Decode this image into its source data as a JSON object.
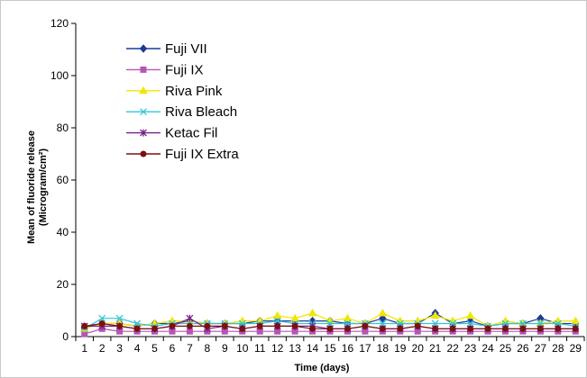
{
  "chart_data": {
    "type": "line",
    "title": "",
    "xlabel": "Time (days)",
    "ylabel_lines": [
      "Mean of fluoride release",
      "(Microgram/cm²)"
    ],
    "x": [
      1,
      2,
      3,
      4,
      5,
      6,
      7,
      8,
      9,
      10,
      11,
      12,
      13,
      14,
      15,
      16,
      17,
      18,
      19,
      20,
      21,
      22,
      23,
      24,
      25,
      26,
      27,
      28,
      29
    ],
    "ylim": [
      0,
      120
    ],
    "yticks": [
      0,
      20,
      40,
      60,
      80,
      100,
      120
    ],
    "grid": false,
    "legend_position": "top-left",
    "series": [
      {
        "name": "Fuji VII",
        "color": "#1f3a93",
        "marker": "diamond",
        "values": [
          3.5,
          5,
          5,
          4,
          5,
          5,
          6,
          5,
          5,
          5,
          6,
          6,
          6,
          6,
          6,
          5,
          5,
          7,
          5,
          5,
          9,
          5,
          6,
          4,
          5,
          5,
          7,
          5,
          5
        ]
      },
      {
        "name": "Fuji IX",
        "color": "#b455b6",
        "marker": "square",
        "values": [
          1,
          3,
          2,
          2,
          2,
          2,
          2,
          2,
          2,
          2,
          2,
          2,
          2,
          2,
          2,
          2,
          2,
          2,
          2,
          2,
          2,
          2,
          2,
          2,
          2,
          2,
          2,
          2,
          2
        ]
      },
      {
        "name": "Riva Pink",
        "color": "#f2e600",
        "marker": "triangle",
        "values": [
          3,
          5,
          5,
          4,
          5,
          6,
          6,
          5,
          5,
          6,
          6,
          8,
          7,
          9,
          6,
          7,
          5,
          9,
          6,
          6,
          8,
          6,
          8,
          4,
          6,
          5,
          5,
          6,
          6
        ]
      },
      {
        "name": "Riva Bleach",
        "color": "#33c6d8",
        "marker": "x",
        "values": [
          3,
          7,
          7,
          5,
          4,
          5,
          5,
          5,
          5,
          5,
          5,
          6,
          5,
          5,
          5,
          5,
          5,
          5,
          5,
          5,
          5,
          5,
          5,
          4,
          5,
          5,
          5,
          5,
          4
        ]
      },
      {
        "name": "Ketac Fil",
        "color": "#7a1f8a",
        "marker": "asterisk",
        "values": [
          4,
          4,
          4,
          3,
          3,
          4,
          7,
          3,
          4,
          3,
          4,
          4,
          4,
          4,
          3,
          3,
          4,
          3,
          3,
          4,
          3,
          3,
          3,
          3,
          3,
          3,
          3,
          3,
          3
        ]
      },
      {
        "name": "Fuji IX Extra",
        "color": "#7a1010",
        "marker": "circle",
        "values": [
          4,
          5,
          4,
          3,
          3,
          4,
          4,
          4,
          4,
          3,
          4,
          4,
          4,
          3,
          3,
          3,
          4,
          3,
          3,
          4,
          3,
          3,
          3,
          3,
          3,
          3,
          3,
          3,
          3
        ]
      }
    ]
  }
}
